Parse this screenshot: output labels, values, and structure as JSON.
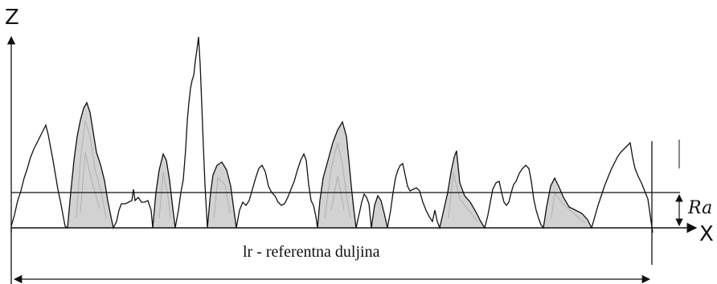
{
  "labels": {
    "z_axis": "Z",
    "x_axis": "X",
    "ra": "Ra",
    "reference_length": "lr - referentna duljina"
  },
  "colors": {
    "line": "#111111",
    "peak_fill": "#d2d2d2",
    "peak_detail": "#b3b3b3"
  }
}
